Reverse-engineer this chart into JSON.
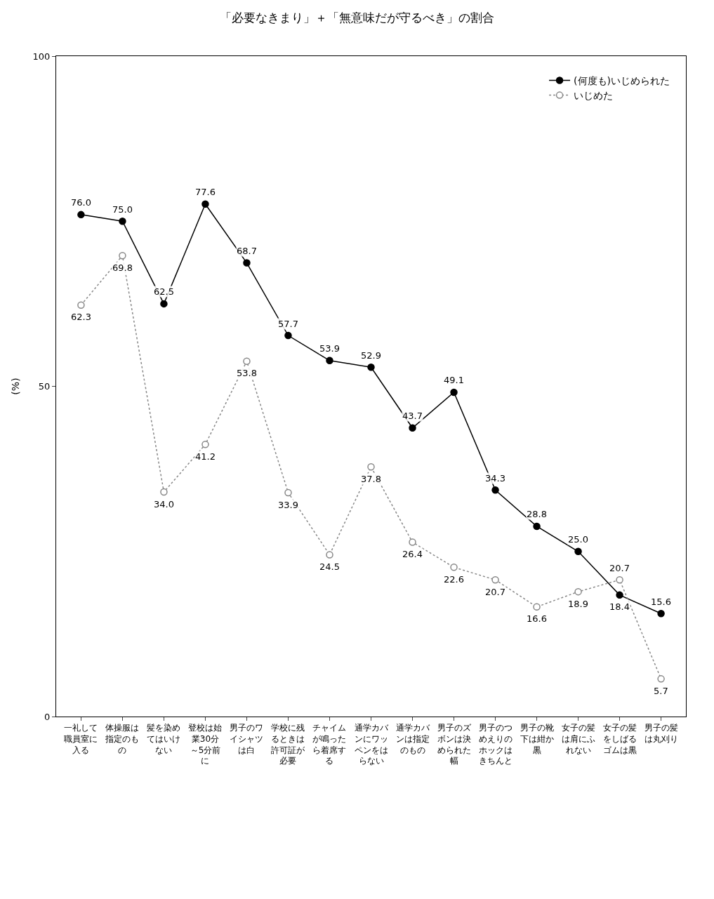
{
  "chart_data": {
    "type": "line",
    "title": "「必要なきまり」＋「無意味だが守るべき」の割合",
    "ylabel": "(%)",
    "categories": [
      "一礼して職員室に入る",
      "体操服は指定のもの",
      "髪を染めてはいけない",
      "登校は始業30分～5分前に",
      "男子のワイシャツは白",
      "学校に残るときは許可証が必要",
      "チャイムが鳴ったら着席する",
      "通学カバンにワッペンをはらない",
      "通学カバンは指定のもの",
      "男子のズボンは決められた幅",
      "男子のつめえりのホックはきちんと",
      "男子の靴下は紺か黒",
      "女子の髪は肩にふれない",
      "女子の髪をしばるゴムは黒",
      "男子の髪は丸刈り"
    ],
    "series": [
      {
        "name": "(何度も)いじめられた",
        "color": "#000000",
        "line_style": "solid",
        "values": [
          76.0,
          75.0,
          62.5,
          77.6,
          68.7,
          57.7,
          53.9,
          52.9,
          43.7,
          49.1,
          34.3,
          28.8,
          25.0,
          18.4,
          15.6
        ],
        "value_labels": [
          "76.0",
          "75.0",
          "62.5",
          "77.6",
          "68.7",
          "57.7",
          "53.9",
          "52.9",
          "43.7",
          "49.1",
          "34.3",
          "28.8",
          "25.0",
          "18.4",
          "15.6"
        ]
      },
      {
        "name": "いじめた",
        "color": "#888888",
        "line_style": "dotted",
        "values": [
          62.3,
          69.8,
          34.0,
          41.2,
          53.8,
          33.9,
          24.5,
          37.8,
          26.4,
          22.6,
          20.7,
          16.6,
          18.9,
          20.7,
          5.7
        ],
        "value_labels": [
          "62.3",
          "69.8",
          "34.0",
          "41.2",
          "53.8",
          "33.9",
          "24.5",
          "37.8",
          "26.4",
          "22.6",
          "20.7",
          "16.6",
          "18.9",
          "20.7",
          "5.7"
        ]
      }
    ],
    "ylim": [
      0,
      100
    ],
    "yticks": [
      0,
      50,
      100
    ],
    "marker": "circle",
    "legend": "top right"
  }
}
